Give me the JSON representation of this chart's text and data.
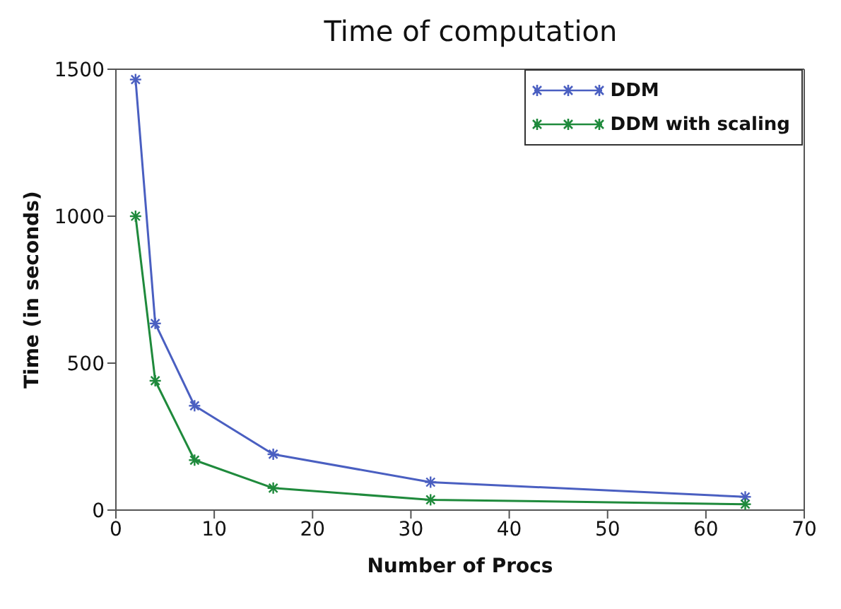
{
  "chart_data": {
    "type": "line",
    "title": "Time of computation",
    "xlabel": "Number of Procs",
    "ylabel": "Time (in seconds)",
    "x": [
      2,
      4,
      8,
      16,
      32,
      64
    ],
    "series": [
      {
        "name": "DDM",
        "color": "#4a5fc1",
        "values": [
          1465,
          635,
          355,
          190,
          95,
          45
        ]
      },
      {
        "name": "DDM with scaling",
        "color": "#1f8a3c",
        "values": [
          1000,
          440,
          170,
          75,
          35,
          20
        ]
      }
    ],
    "xlim": [
      0,
      70
    ],
    "xticks": [
      0,
      10,
      20,
      30,
      40,
      50,
      60,
      70
    ],
    "ylim": [
      0,
      1500
    ],
    "yticks": [
      0,
      500,
      1000,
      1500
    ],
    "grid": false,
    "legend": "top right",
    "marker": "cross",
    "line_style": "solid"
  }
}
